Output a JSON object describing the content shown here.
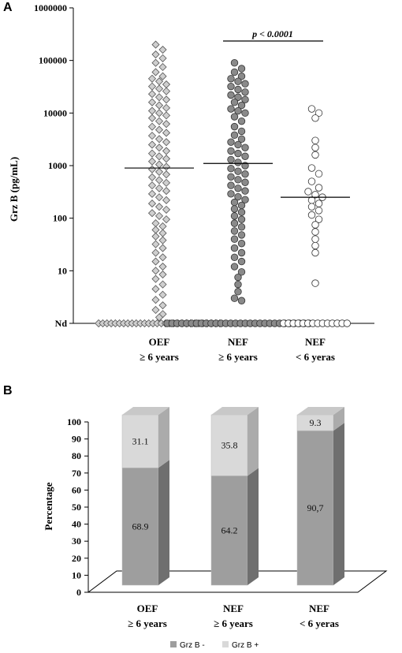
{
  "chart_data": [
    {
      "panel": "A",
      "type": "scatter",
      "ylabel": "Grz B (pg/mL)",
      "yscale": "log",
      "yticks": [
        "1000000",
        "100000",
        "10000",
        "1000",
        "100",
        "10",
        "Nd"
      ],
      "categories": [
        {
          "line1": "OEF",
          "line2": "≥ 6 years"
        },
        {
          "line1": "NEF",
          "line2": "≥ 6 years"
        },
        {
          "line1": "NEF",
          "line2": "< 6 yeras"
        }
      ],
      "series_markers": [
        "diamond-gray",
        "circle-gray",
        "circle-white"
      ],
      "nd_counts": [
        30,
        30,
        14
      ],
      "medians": [
        900,
        1100,
        250
      ],
      "significance": {
        "label": "p < 0.0001",
        "from": 1,
        "to": 2
      },
      "groups": [
        {
          "name": "OEF ≥ 6 years",
          "values": [
            200000,
            160000,
            130000,
            110000,
            90000,
            75000,
            60000,
            50000,
            45000,
            40000,
            35000,
            32000,
            29000,
            26000,
            23000,
            20000,
            18000,
            16000,
            14000,
            12500,
            11000,
            10000,
            9000,
            8000,
            7000,
            6200,
            5500,
            4800,
            4200,
            3700,
            3200,
            2800,
            2500,
            2200,
            1900,
            1700,
            1500,
            1350,
            1200,
            1050,
            950,
            850,
            760,
            680,
            600,
            530,
            470,
            420,
            370,
            330,
            290,
            250,
            220,
            190,
            165,
            145,
            125,
            110,
            95,
            80,
            70,
            60,
            52,
            45,
            38,
            32,
            27,
            22,
            18,
            15,
            12,
            10,
            8.5,
            7,
            5.5,
            4.5,
            3.5,
            2.8,
            2.2,
            1.8,
            1.5,
            1.3
          ]
        },
        {
          "name": "NEF ≥ 6 years",
          "values": [
            90000,
            70000,
            60000,
            50000,
            45000,
            40000,
            36000,
            32000,
            28000,
            25000,
            22000,
            20000,
            18000,
            16000,
            14000,
            12000,
            11000,
            10000,
            8500,
            7000,
            5500,
            4500,
            3800,
            3200,
            2800,
            2500,
            2200,
            1900,
            1700,
            1500,
            1300,
            1150,
            1000,
            880,
            780,
            690,
            610,
            540,
            480,
            420,
            370,
            330,
            290,
            255,
            225,
            200,
            175,
            150,
            130,
            110,
            95,
            80,
            68,
            57,
            48,
            40,
            33,
            27,
            22,
            18,
            15,
            12,
            9.5,
            7.5,
            5.5,
            4,
            3,
            2.7
          ]
        },
        {
          "name": "NEF < 6 yeras",
          "values": [
            12000,
            10000,
            8000,
            3000,
            2200,
            1600,
            900,
            700,
            500,
            380,
            320,
            280,
            250,
            220,
            190,
            165,
            140,
            115,
            95,
            75,
            55,
            40,
            30,
            22,
            5.8
          ]
        }
      ]
    },
    {
      "panel": "B",
      "type": "bar",
      "stacked": true,
      "ylabel": "Percentage",
      "ylim": [
        0,
        100
      ],
      "yticks": [
        "0",
        "10",
        "20",
        "30",
        "40",
        "50",
        "60",
        "70",
        "80",
        "90",
        "100"
      ],
      "categories": [
        {
          "line1": "OEF",
          "line2": "≥ 6 years"
        },
        {
          "line1": "NEF",
          "line2": "≥ 6 years"
        },
        {
          "line1": "NEF",
          "line2": "< 6 yeras"
        }
      ],
      "series": [
        {
          "name": "Grz B -",
          "color": "#9e9e9e",
          "values": [
            68.9,
            64.2,
            90.7
          ],
          "labels": [
            "68.9",
            "64.2",
            "90,7"
          ]
        },
        {
          "name": "Grz B +",
          "color": "#d9d9d9",
          "values": [
            31.1,
            35.8,
            9.3
          ],
          "labels": [
            "31.1",
            "35.8",
            "9.3"
          ]
        }
      ],
      "legend_placement": "bottom"
    }
  ]
}
